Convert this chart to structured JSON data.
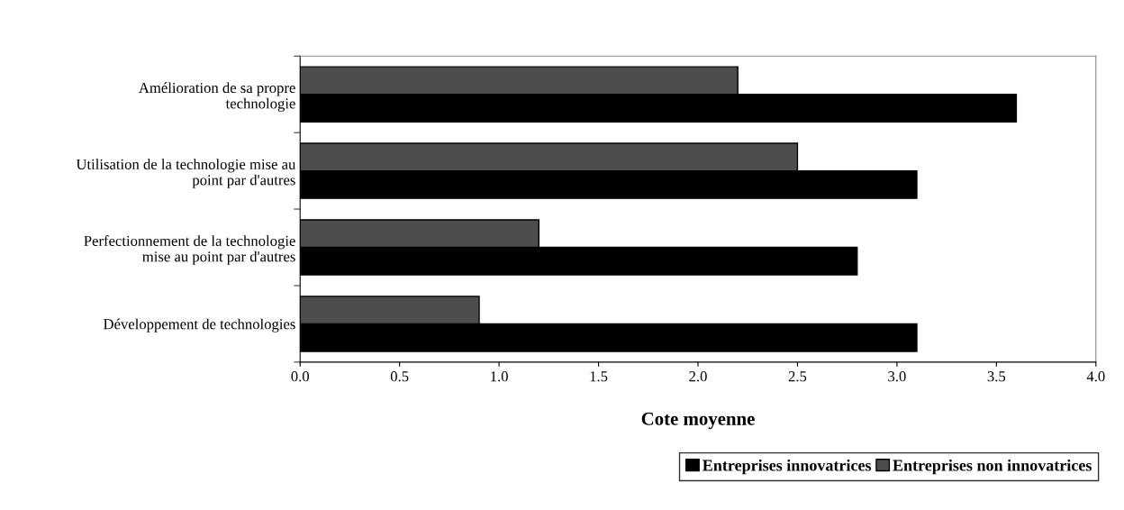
{
  "chart_data": {
    "type": "bar",
    "orientation": "horizontal",
    "xlabel": "Cote moyenne",
    "categories": [
      "Amélioration de sa propre\ntechnologie",
      "Utilisation de la technologie mise au\npoint par d'autres",
      "Perfectionnement de la technologie\nmise au point par d'autres",
      "Développement de technologies"
    ],
    "series": [
      {
        "name": "Entreprises innovatrices",
        "color": "#000000",
        "values": [
          3.6,
          3.1,
          2.8,
          3.1
        ]
      },
      {
        "name": "Entreprises non innovatrices",
        "color": "#4d4d4d",
        "values": [
          2.2,
          2.5,
          1.2,
          0.9
        ]
      }
    ],
    "xlim": [
      0,
      4
    ],
    "xticks": [
      {
        "value": 0,
        "label": "0.0"
      },
      {
        "value": 0.5,
        "label": "0.5"
      },
      {
        "value": 1,
        "label": "1.0"
      },
      {
        "value": 1.5,
        "label": "1.5"
      },
      {
        "value": 2,
        "label": "2.0"
      },
      {
        "value": 2.5,
        "label": "2.5"
      },
      {
        "value": 3,
        "label": "3.0"
      },
      {
        "value": 3.5,
        "label": "3.5"
      },
      {
        "value": 4,
        "label": "4.0"
      }
    ],
    "grid": false,
    "legend": "bottom"
  }
}
